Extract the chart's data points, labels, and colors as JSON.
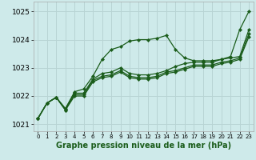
{
  "title": "Graphe pression niveau de la mer (hPa)",
  "background_color": "#ceeaea",
  "grid_color": "#b8d4d4",
  "line_color": "#1a5c1a",
  "xlim": [
    -0.5,
    23.5
  ],
  "ylim": [
    1020.75,
    1025.35
  ],
  "xticks": [
    0,
    1,
    2,
    3,
    4,
    5,
    6,
    7,
    8,
    9,
    10,
    11,
    12,
    13,
    14,
    15,
    16,
    17,
    18,
    19,
    20,
    21,
    22,
    23
  ],
  "yticks": [
    1021,
    1022,
    1023,
    1024,
    1025
  ],
  "series": [
    [
      1021.2,
      1021.75,
      1021.95,
      1021.55,
      1022.15,
      1022.25,
      1022.7,
      1023.3,
      1023.65,
      1023.75,
      1023.95,
      1024.0,
      1024.0,
      1024.05,
      1024.15,
      1023.65,
      1023.35,
      1023.25,
      1023.25,
      1023.25,
      1023.3,
      1023.4,
      1024.35,
      1025.0
    ],
    [
      1021.2,
      1021.75,
      1021.95,
      1021.55,
      1022.1,
      1022.1,
      1022.6,
      1022.8,
      1022.85,
      1023.0,
      1022.8,
      1022.75,
      1022.75,
      1022.8,
      1022.9,
      1023.05,
      1023.15,
      1023.2,
      1023.2,
      1023.2,
      1023.3,
      1023.35,
      1023.4,
      1024.35
    ],
    [
      1021.2,
      1021.75,
      1021.95,
      1021.5,
      1022.05,
      1022.05,
      1022.55,
      1022.7,
      1022.75,
      1022.9,
      1022.7,
      1022.65,
      1022.65,
      1022.7,
      1022.85,
      1022.9,
      1023.0,
      1023.1,
      1023.1,
      1023.1,
      1023.2,
      1023.25,
      1023.35,
      1024.2
    ],
    [
      1021.2,
      1021.75,
      1021.95,
      1021.5,
      1022.0,
      1022.0,
      1022.5,
      1022.65,
      1022.7,
      1022.85,
      1022.65,
      1022.6,
      1022.6,
      1022.65,
      1022.8,
      1022.85,
      1022.95,
      1023.05,
      1023.05,
      1023.05,
      1023.15,
      1023.2,
      1023.3,
      1024.1
    ]
  ],
  "xlabel_fontsize": 7.0,
  "xtick_fontsize": 5.0,
  "ytick_fontsize": 6.5
}
